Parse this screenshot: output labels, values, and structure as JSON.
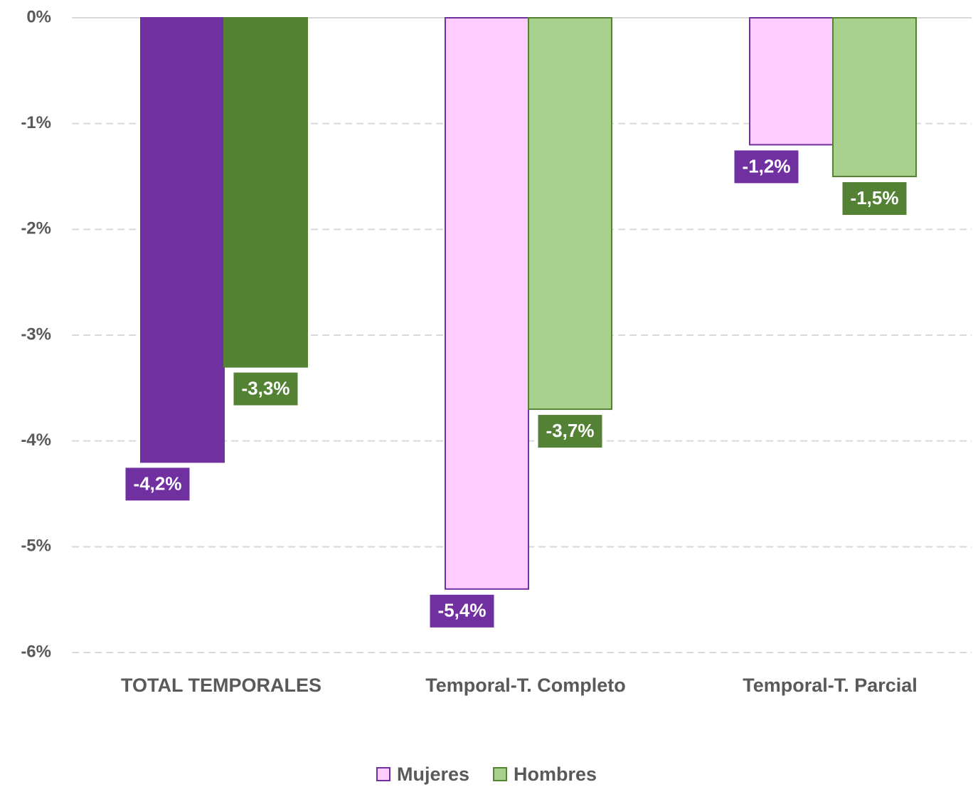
{
  "chart_data": {
    "type": "bar",
    "categories": [
      "TOTAL TEMPORALES",
      "Temporal-T. Completo",
      "Temporal-T. Parcial"
    ],
    "series": [
      {
        "name": "Mujeres",
        "color": "#ffccff",
        "edge_color": "#7030a0",
        "point_colors": [
          "#7030a0",
          "#ffccff",
          "#ffccff"
        ],
        "label_color": "#7030a0",
        "values": [
          -4.2,
          -5.4,
          -1.2
        ],
        "value_labels": [
          "-4,2%",
          "-5,4%",
          "-1,2%"
        ]
      },
      {
        "name": "Hombres",
        "color": "#a9d18e",
        "edge_color": "#548235",
        "point_colors": [
          "#548235",
          "#a9d18e",
          "#a9d18e"
        ],
        "label_color": "#548235",
        "values": [
          -3.3,
          -3.7,
          -1.5
        ],
        "value_labels": [
          "-3,3%",
          "-3,7%",
          "-1,5%"
        ]
      }
    ],
    "ylim": [
      -6,
      0
    ],
    "yticks": [
      {
        "value": 0,
        "label": "0%"
      },
      {
        "value": -1,
        "label": "-1%"
      },
      {
        "value": -2,
        "label": "-2%"
      },
      {
        "value": -3,
        "label": "-3%"
      },
      {
        "value": -4,
        "label": "-4%"
      },
      {
        "value": -5,
        "label": "-5%"
      },
      {
        "value": -6,
        "label": "-6%"
      }
    ],
    "grid": true
  }
}
